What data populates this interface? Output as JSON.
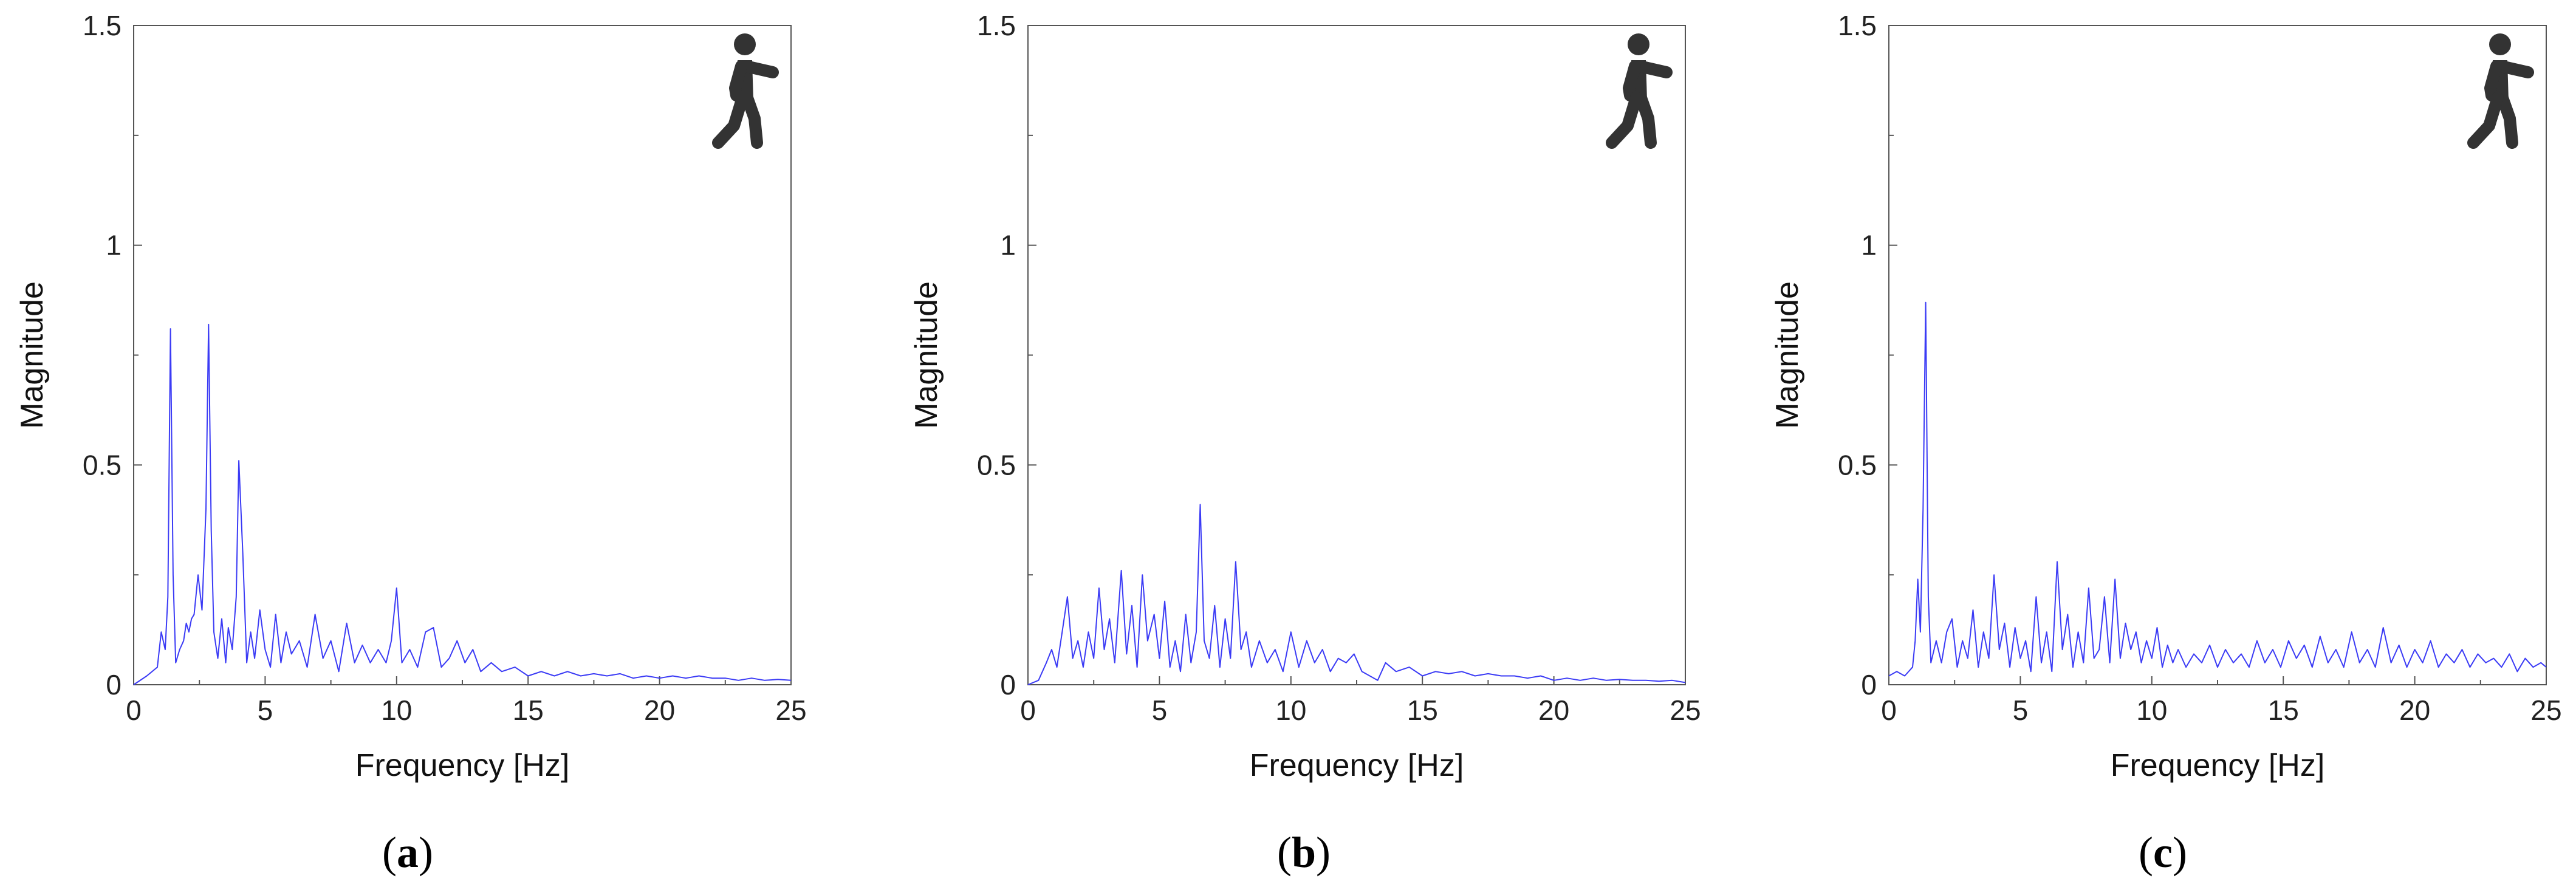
{
  "line_color": "#3b3bf5",
  "axis_color": "#555555",
  "icon": {
    "name": "walking-person-icon",
    "color": "#333333"
  },
  "chart_data": [
    {
      "type": "line",
      "panel_label": "(a)",
      "panel_letter": "a",
      "xlabel": "Frequency  [Hz]",
      "ylabel": "Magnitude",
      "xlim": [
        0,
        25
      ],
      "ylim": [
        0,
        1.5
      ],
      "x_ticks": [
        0,
        5,
        10,
        15,
        20,
        25
      ],
      "x_tick_labels": [
        "0",
        "5",
        "10",
        "15",
        "20",
        "25"
      ],
      "y_ticks": [
        0,
        0.5,
        1,
        1.5
      ],
      "y_tick_labels": [
        "0",
        "0.5",
        "1",
        "1.5"
      ],
      "grid": false,
      "series": [
        {
          "x": [
            0,
            0.5,
            0.9,
            1.05,
            1.2,
            1.3,
            1.4,
            1.5,
            1.6,
            1.75,
            1.9,
            2.0,
            2.1,
            2.2,
            2.3,
            2.45,
            2.6,
            2.75,
            2.85,
            2.95,
            3.05,
            3.2,
            3.35,
            3.5,
            3.6,
            3.75,
            3.9,
            4.0,
            4.15,
            4.3,
            4.45,
            4.6,
            4.8,
            5.0,
            5.2,
            5.4,
            5.6,
            5.8,
            6.0,
            6.3,
            6.6,
            6.9,
            7.2,
            7.5,
            7.8,
            8.1,
            8.4,
            8.7,
            9.0,
            9.3,
            9.6,
            9.8,
            10.0,
            10.2,
            10.5,
            10.8,
            11.1,
            11.4,
            11.7,
            12.0,
            12.3,
            12.6,
            12.9,
            13.2,
            13.6,
            14.0,
            14.5,
            15.0,
            15.5,
            16.0,
            16.5,
            17.0,
            17.5,
            18.0,
            18.5,
            19.0,
            19.5,
            20.0,
            20.5,
            21.0,
            21.5,
            22.0,
            22.5,
            23.0,
            23.5,
            24.0,
            24.5,
            25.0
          ],
          "y": [
            0.0,
            0.02,
            0.04,
            0.12,
            0.08,
            0.2,
            0.81,
            0.25,
            0.05,
            0.08,
            0.1,
            0.14,
            0.12,
            0.15,
            0.16,
            0.25,
            0.17,
            0.4,
            0.82,
            0.35,
            0.12,
            0.06,
            0.15,
            0.05,
            0.13,
            0.08,
            0.2,
            0.51,
            0.3,
            0.05,
            0.12,
            0.06,
            0.17,
            0.08,
            0.04,
            0.16,
            0.05,
            0.12,
            0.07,
            0.1,
            0.04,
            0.16,
            0.06,
            0.1,
            0.03,
            0.14,
            0.05,
            0.09,
            0.05,
            0.08,
            0.05,
            0.1,
            0.22,
            0.05,
            0.08,
            0.04,
            0.12,
            0.13,
            0.04,
            0.06,
            0.1,
            0.05,
            0.08,
            0.03,
            0.05,
            0.03,
            0.04,
            0.02,
            0.03,
            0.02,
            0.03,
            0.02,
            0.025,
            0.02,
            0.025,
            0.015,
            0.02,
            0.015,
            0.02,
            0.015,
            0.02,
            0.015,
            0.015,
            0.01,
            0.015,
            0.01,
            0.012,
            0.01
          ]
        }
      ]
    },
    {
      "type": "line",
      "panel_label": "(b)",
      "panel_letter": "b",
      "xlabel": "Frequency  [Hz]",
      "ylabel": "Magnitude",
      "xlim": [
        0,
        25
      ],
      "ylim": [
        0,
        1.5
      ],
      "x_ticks": [
        0,
        5,
        10,
        15,
        20,
        25
      ],
      "x_tick_labels": [
        "0",
        "5",
        "10",
        "15",
        "20",
        "25"
      ],
      "y_ticks": [
        0,
        0.5,
        1,
        1.5
      ],
      "y_tick_labels": [
        "0",
        "0.5",
        "1",
        "1.5"
      ],
      "grid": false,
      "series": [
        {
          "x": [
            0,
            0.4,
            0.7,
            0.9,
            1.1,
            1.3,
            1.5,
            1.7,
            1.9,
            2.1,
            2.3,
            2.5,
            2.7,
            2.9,
            3.1,
            3.3,
            3.55,
            3.75,
            3.95,
            4.15,
            4.35,
            4.55,
            4.8,
            5.0,
            5.2,
            5.4,
            5.6,
            5.8,
            6.0,
            6.2,
            6.4,
            6.55,
            6.7,
            6.9,
            7.1,
            7.3,
            7.5,
            7.7,
            7.9,
            8.1,
            8.3,
            8.5,
            8.8,
            9.1,
            9.4,
            9.7,
            10.0,
            10.3,
            10.6,
            10.9,
            11.2,
            11.5,
            11.8,
            12.1,
            12.4,
            12.7,
            13.0,
            13.3,
            13.6,
            14.0,
            14.5,
            15.0,
            15.5,
            16.0,
            16.5,
            17.0,
            17.5,
            18.0,
            18.5,
            19.0,
            19.5,
            20.0,
            20.5,
            21.0,
            21.5,
            22.0,
            22.5,
            23.0,
            23.5,
            24.0,
            24.5,
            25.0
          ],
          "y": [
            0.0,
            0.01,
            0.05,
            0.08,
            0.04,
            0.12,
            0.2,
            0.06,
            0.1,
            0.04,
            0.12,
            0.06,
            0.22,
            0.08,
            0.15,
            0.05,
            0.26,
            0.07,
            0.18,
            0.04,
            0.25,
            0.1,
            0.16,
            0.06,
            0.19,
            0.04,
            0.1,
            0.03,
            0.16,
            0.05,
            0.12,
            0.41,
            0.1,
            0.06,
            0.18,
            0.04,
            0.15,
            0.06,
            0.28,
            0.08,
            0.12,
            0.04,
            0.1,
            0.05,
            0.08,
            0.03,
            0.12,
            0.04,
            0.1,
            0.05,
            0.08,
            0.03,
            0.06,
            0.05,
            0.07,
            0.03,
            0.02,
            0.01,
            0.05,
            0.03,
            0.04,
            0.02,
            0.03,
            0.025,
            0.03,
            0.02,
            0.025,
            0.02,
            0.02,
            0.015,
            0.02,
            0.01,
            0.015,
            0.01,
            0.015,
            0.01,
            0.012,
            0.01,
            0.01,
            0.008,
            0.01,
            0.005
          ]
        }
      ]
    },
    {
      "type": "line",
      "panel_label": "(c)",
      "panel_letter": "c",
      "xlabel": "Frequency  [Hz]",
      "ylabel": "Magnitude",
      "xlim": [
        0,
        25
      ],
      "ylim": [
        0,
        1.5
      ],
      "x_ticks": [
        0,
        5,
        10,
        15,
        20,
        25
      ],
      "x_tick_labels": [
        "0",
        "5",
        "10",
        "15",
        "20",
        "25"
      ],
      "y_ticks": [
        0,
        0.5,
        1,
        1.5
      ],
      "y_tick_labels": [
        "0",
        "0.5",
        "1",
        "1.5"
      ],
      "grid": false,
      "series": [
        {
          "x": [
            0,
            0.3,
            0.6,
            0.9,
            1.0,
            1.1,
            1.2,
            1.3,
            1.4,
            1.5,
            1.6,
            1.8,
            2.0,
            2.2,
            2.4,
            2.6,
            2.8,
            3.0,
            3.2,
            3.4,
            3.6,
            3.8,
            4.0,
            4.2,
            4.4,
            4.6,
            4.8,
            5.0,
            5.2,
            5.4,
            5.6,
            5.8,
            6.0,
            6.2,
            6.4,
            6.6,
            6.8,
            7.0,
            7.2,
            7.4,
            7.6,
            7.8,
            8.0,
            8.2,
            8.4,
            8.6,
            8.8,
            9.0,
            9.2,
            9.4,
            9.6,
            9.8,
            10.0,
            10.2,
            10.4,
            10.6,
            10.8,
            11.0,
            11.3,
            11.6,
            11.9,
            12.2,
            12.5,
            12.8,
            13.1,
            13.4,
            13.7,
            14.0,
            14.3,
            14.6,
            14.9,
            15.2,
            15.5,
            15.8,
            16.1,
            16.4,
            16.7,
            17.0,
            17.3,
            17.6,
            17.9,
            18.2,
            18.5,
            18.8,
            19.1,
            19.4,
            19.7,
            20.0,
            20.3,
            20.6,
            20.9,
            21.2,
            21.5,
            21.8,
            22.1,
            22.4,
            22.7,
            23.0,
            23.3,
            23.6,
            23.9,
            24.2,
            24.5,
            24.8,
            25.0
          ],
          "y": [
            0.02,
            0.03,
            0.02,
            0.04,
            0.1,
            0.24,
            0.12,
            0.4,
            0.87,
            0.2,
            0.05,
            0.1,
            0.05,
            0.12,
            0.15,
            0.04,
            0.1,
            0.06,
            0.17,
            0.04,
            0.12,
            0.06,
            0.25,
            0.08,
            0.14,
            0.04,
            0.13,
            0.06,
            0.1,
            0.03,
            0.2,
            0.05,
            0.12,
            0.03,
            0.28,
            0.08,
            0.16,
            0.04,
            0.12,
            0.05,
            0.22,
            0.06,
            0.08,
            0.2,
            0.05,
            0.24,
            0.06,
            0.14,
            0.08,
            0.12,
            0.05,
            0.1,
            0.06,
            0.13,
            0.04,
            0.09,
            0.05,
            0.08,
            0.04,
            0.07,
            0.05,
            0.09,
            0.04,
            0.08,
            0.05,
            0.07,
            0.04,
            0.1,
            0.05,
            0.08,
            0.04,
            0.1,
            0.06,
            0.09,
            0.04,
            0.11,
            0.05,
            0.08,
            0.04,
            0.12,
            0.05,
            0.08,
            0.04,
            0.13,
            0.05,
            0.09,
            0.04,
            0.08,
            0.05,
            0.1,
            0.04,
            0.07,
            0.05,
            0.08,
            0.04,
            0.07,
            0.05,
            0.06,
            0.04,
            0.07,
            0.03,
            0.06,
            0.04,
            0.05,
            0.04
          ]
        }
      ]
    }
  ]
}
